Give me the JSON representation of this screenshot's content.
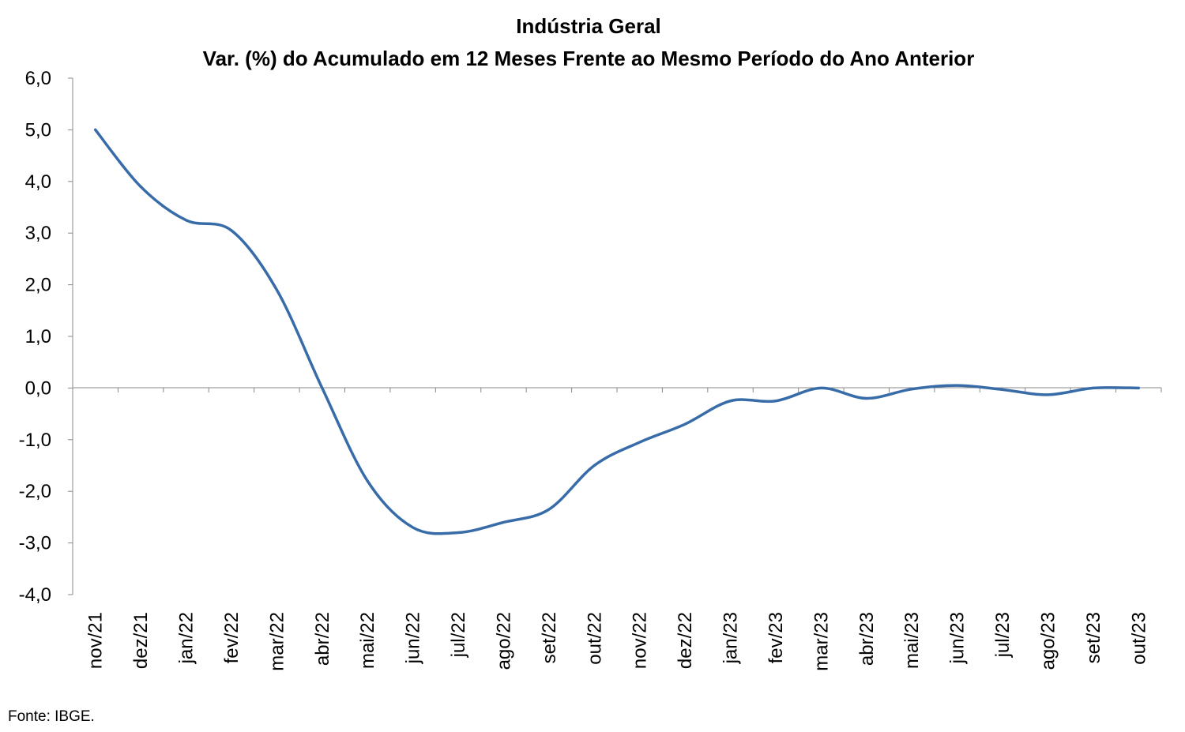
{
  "chart_data": {
    "type": "line",
    "title": "Indústria Geral",
    "subtitle": "Var. (%) do Acumulado em 12 Meses Frente ao Mesmo Período do Ano Anterior",
    "xlabel": "",
    "ylabel": "",
    "categories": [
      "nov/21",
      "dez/21",
      "jan/22",
      "fev/22",
      "mar/22",
      "abr/22",
      "mai/22",
      "jun/22",
      "jul/22",
      "ago/22",
      "set/22",
      "out/22",
      "nov/22",
      "dez/22",
      "jan/23",
      "fev/23",
      "mar/23",
      "abr/23",
      "mai/23",
      "jun/23",
      "jul/23",
      "ago/23",
      "set/23",
      "out/23"
    ],
    "series": [
      {
        "values": [
          5.0,
          3.9,
          3.25,
          3.05,
          1.9,
          0.0,
          -1.8,
          -2.7,
          -2.8,
          -2.6,
          -2.35,
          -1.5,
          -1.05,
          -0.7,
          -0.25,
          -0.25,
          0.0,
          -0.2,
          -0.02,
          0.05,
          -0.03,
          -0.13,
          0.0,
          0.0
        ],
        "color": "#386CA8"
      }
    ],
    "ylim": [
      -4.0,
      6.0
    ],
    "yticks": [
      "6,0",
      "5,0",
      "4,0",
      "3,0",
      "2,0",
      "1,0",
      "0,0",
      "-1,0",
      "-2,0",
      "-3,0",
      "-4,0"
    ],
    "grid": false,
    "legend": "none"
  },
  "source": "Fonte: IBGE."
}
